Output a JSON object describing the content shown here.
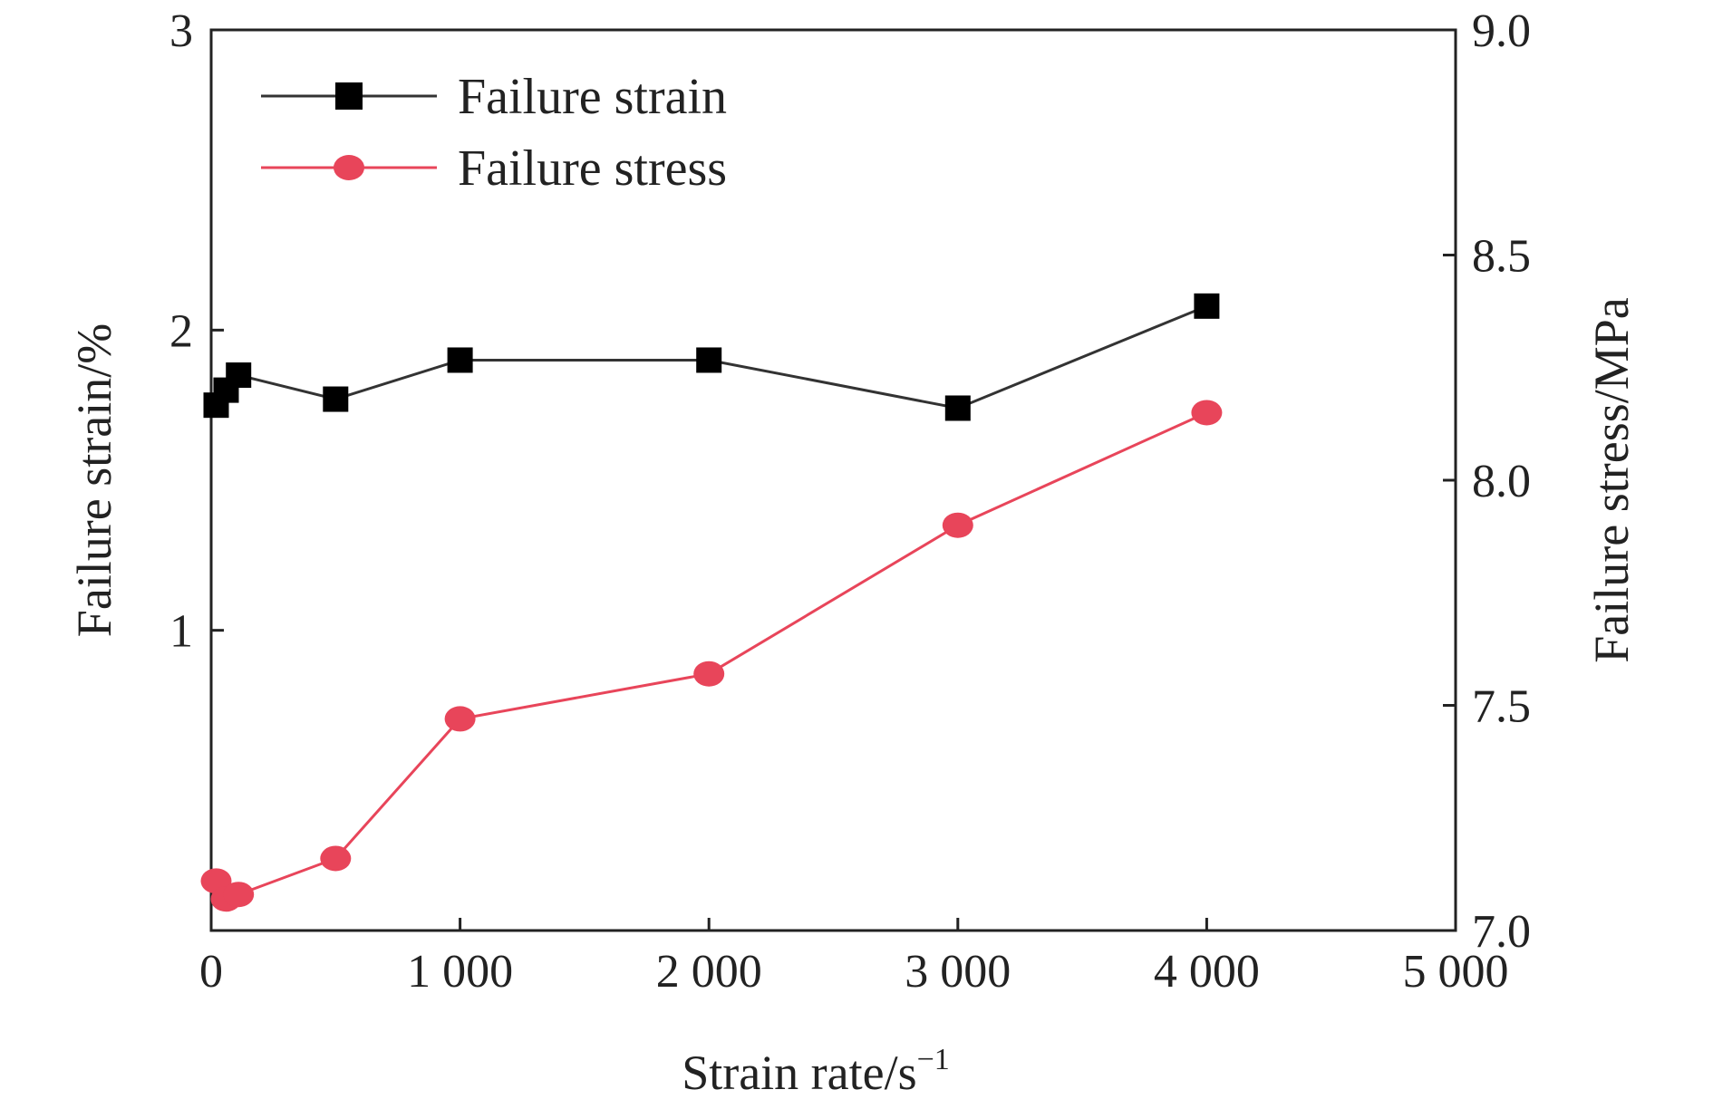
{
  "chart_data": {
    "type": "line",
    "title": "",
    "xlabel": "Strain rate/s",
    "xlabel_superscript": "−1",
    "ylabel_left": "Failure strain/%",
    "ylabel_right": "Failure stress/MPa",
    "xlim": [
      0,
      5000
    ],
    "ylim_left": [
      0,
      3
    ],
    "ylim_right": [
      7.0,
      9.0
    ],
    "x_ticks": [
      0,
      1000,
      2000,
      3000,
      4000,
      5000
    ],
    "x_tick_labels": [
      "0",
      "1 000",
      "2 000",
      "3 000",
      "4 000",
      "5 000"
    ],
    "y_left_ticks": [
      1,
      2,
      3
    ],
    "y_left_tick_labels": [
      "1",
      "2",
      "3"
    ],
    "y_right_ticks": [
      7.0,
      7.5,
      8.0,
      8.5,
      9.0
    ],
    "y_right_tick_labels": [
      "7.0",
      "7.5",
      "8.0",
      "8.5",
      "9.0"
    ],
    "grid": false,
    "legend_position": "top-left",
    "series": [
      {
        "name": "Failure strain",
        "axis": "left",
        "marker": "square",
        "color": "#000000",
        "line_color": "#333333",
        "x": [
          20,
          60,
          110,
          500,
          1000,
          2000,
          3000,
          4000
        ],
        "y": [
          1.75,
          1.8,
          1.85,
          1.77,
          1.9,
          1.9,
          1.74,
          2.08
        ]
      },
      {
        "name": "Failure stress",
        "axis": "right",
        "marker": "circle",
        "color": "#e8455a",
        "line_color": "#e8455a",
        "x": [
          20,
          60,
          110,
          500,
          1000,
          2000,
          3000,
          4000
        ],
        "y": [
          7.11,
          7.07,
          7.08,
          7.16,
          7.47,
          7.57,
          7.9,
          8.15
        ]
      }
    ]
  }
}
